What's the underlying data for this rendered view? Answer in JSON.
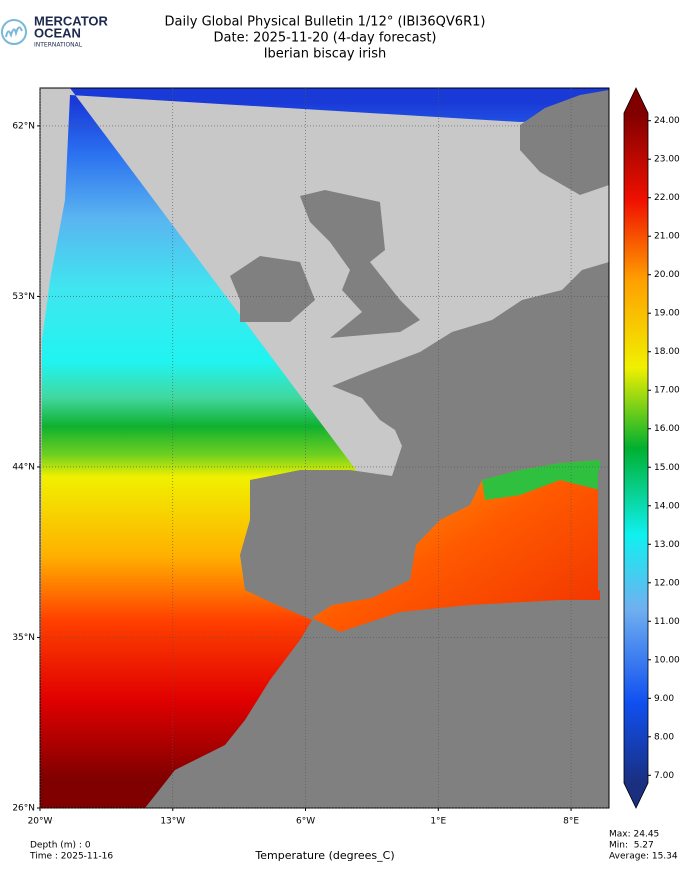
{
  "header": {
    "logo": [
      "MERCATOR",
      "OCEAN",
      "INTERNATIONAL"
    ],
    "title": [
      "Daily Global Physical Bulletin 1/12° (IBI36QV6R1)",
      "Date: 2025-11-20 (4-day forecast)",
      "Iberian biscay irish"
    ]
  },
  "map": {
    "xlim": [
      -20,
      10
    ],
    "ylim": [
      26,
      64
    ],
    "xticks": [
      {
        "value": -20,
        "label": "20°W"
      },
      {
        "value": -13,
        "label": "13°W"
      },
      {
        "value": -6,
        "label": "6°W"
      },
      {
        "value": 1,
        "label": "1°E"
      },
      {
        "value": 8,
        "label": "8°E"
      }
    ],
    "yticks": [
      {
        "value": 26,
        "label": "26°N"
      },
      {
        "value": 35,
        "label": "35°N"
      },
      {
        "value": 44,
        "label": "44°N"
      },
      {
        "value": 53,
        "label": "53°N"
      },
      {
        "value": 62,
        "label": "62°N"
      }
    ],
    "grid": true,
    "colorbar": {
      "lim": [
        6.8,
        24.2
      ],
      "ticks": [
        {
          "value": 7,
          "label": "7.00"
        },
        {
          "value": 8,
          "label": "8.00"
        },
        {
          "value": 9,
          "label": "9.00"
        },
        {
          "value": 10,
          "label": "10.00"
        },
        {
          "value": 11,
          "label": "11.00"
        },
        {
          "value": 12,
          "label": "12.00"
        },
        {
          "value": 13,
          "label": "13.00"
        },
        {
          "value": 14,
          "label": "14.00"
        },
        {
          "value": 15,
          "label": "15.00"
        },
        {
          "value": 16,
          "label": "16.00"
        },
        {
          "value": 17,
          "label": "17.00"
        },
        {
          "value": 18,
          "label": "18.00"
        },
        {
          "value": 19,
          "label": "19.00"
        },
        {
          "value": 20,
          "label": "20.00"
        },
        {
          "value": 21,
          "label": "21.00"
        },
        {
          "value": 22,
          "label": "22.00"
        },
        {
          "value": 23,
          "label": "23.00"
        },
        {
          "value": 24,
          "label": "24.00"
        }
      ]
    },
    "xlabel": "Temperature (degrees_C)"
  },
  "footer": {
    "left": [
      "Depth (m) : 0",
      "Time : 2025-11-16"
    ],
    "right": [
      "Max: 24.45",
      "Min:  5.27",
      "Average: 15.34"
    ]
  }
}
